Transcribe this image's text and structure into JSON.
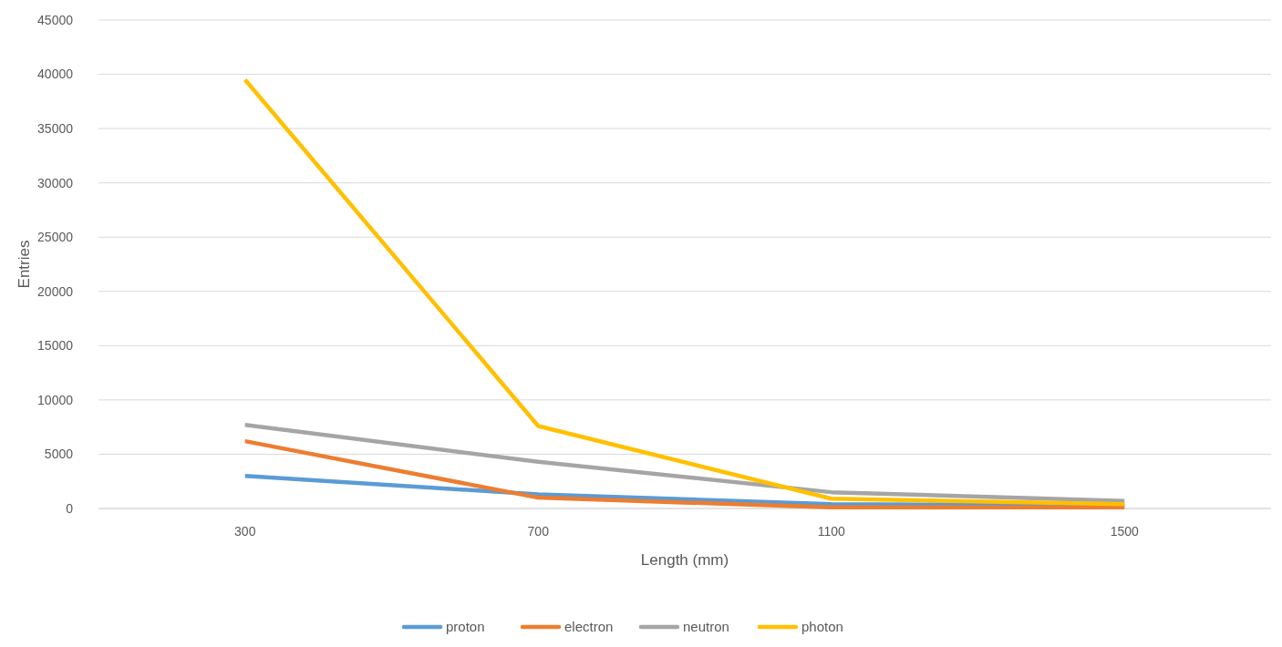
{
  "chart_data": {
    "type": "line",
    "xlabel": "Length (mm)",
    "ylabel": "Entries",
    "categories": [
      "300",
      "700",
      "1100",
      "1500"
    ],
    "series": [
      {
        "name": "proton",
        "color": "#5b9bd5",
        "values": [
          3000,
          1300,
          400,
          300
        ]
      },
      {
        "name": "electron",
        "color": "#ed7d31",
        "values": [
          6200,
          1000,
          100,
          100
        ]
      },
      {
        "name": "neutron",
        "color": "#a5a5a5",
        "values": [
          7700,
          4300,
          1500,
          700
        ]
      },
      {
        "name": "photon",
        "color": "#ffc000",
        "values": [
          39500,
          7600,
          900,
          400
        ]
      }
    ],
    "ylim": [
      0,
      45000
    ],
    "yticks": [
      0,
      5000,
      10000,
      15000,
      20000,
      25000,
      30000,
      35000,
      40000,
      45000
    ],
    "grid": "y",
    "legend": "bottom"
  }
}
